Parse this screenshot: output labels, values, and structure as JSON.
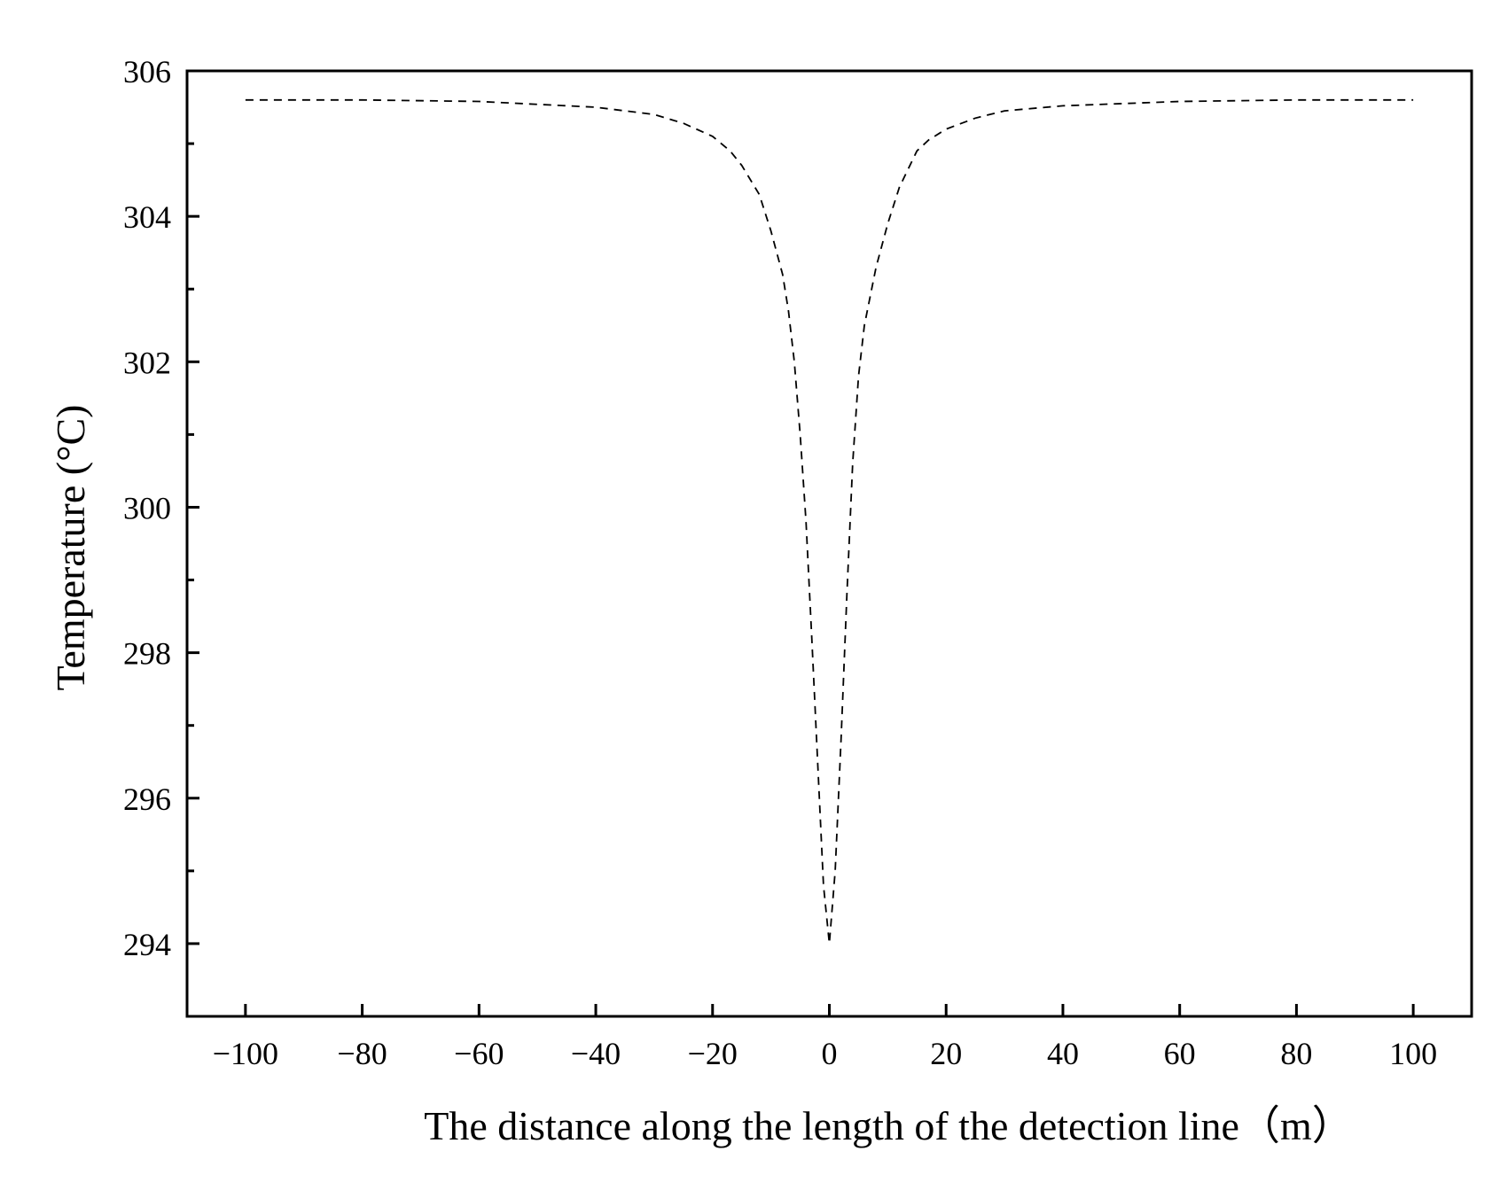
{
  "chart_data": {
    "type": "line",
    "title": "",
    "xlabel": "The distance along the length of the detection line（m）",
    "ylabel": "Temperature (°C)",
    "xlim": [
      -110,
      110
    ],
    "ylim": [
      293,
      306
    ],
    "x_ticks": [
      -100,
      -80,
      -60,
      -40,
      -20,
      0,
      20,
      40,
      60,
      80,
      100
    ],
    "x_tick_labels": [
      "−100",
      "−80",
      "−60",
      "−40",
      "−20",
      "0",
      "20",
      "40",
      "60",
      "80",
      "100"
    ],
    "y_ticks_major": [
      294,
      296,
      298,
      300,
      302,
      304,
      306
    ],
    "y_ticks_minor": [
      295,
      297,
      299,
      301,
      303,
      305
    ],
    "y_tick_labels": [
      "294",
      "296",
      "298",
      "300",
      "302",
      "304",
      "306"
    ],
    "grid": false,
    "legend": "none",
    "series": [
      {
        "style": "dashed",
        "color": "#000000",
        "x": [
          -100,
          -80,
          -60,
          -40,
          -30,
          -25,
          -20,
          -17,
          -15,
          -12,
          -10,
          -8,
          -7,
          -6,
          -5,
          -4,
          -3,
          -2,
          -1,
          0,
          1,
          2,
          3,
          4,
          5,
          6,
          7,
          8,
          10,
          12,
          15,
          17,
          20,
          25,
          30,
          40,
          60,
          80,
          100
        ],
        "y": [
          305.6,
          305.6,
          305.58,
          305.5,
          305.4,
          305.28,
          305.1,
          304.9,
          304.7,
          304.3,
          303.8,
          303.2,
          302.7,
          302.0,
          301.0,
          299.8,
          298.2,
          296.5,
          294.8,
          294.0,
          295.0,
          296.8,
          298.8,
          300.6,
          301.8,
          302.5,
          302.9,
          303.3,
          303.9,
          304.4,
          304.9,
          305.05,
          305.2,
          305.35,
          305.45,
          305.52,
          305.58,
          305.6,
          305.6
        ]
      }
    ]
  }
}
